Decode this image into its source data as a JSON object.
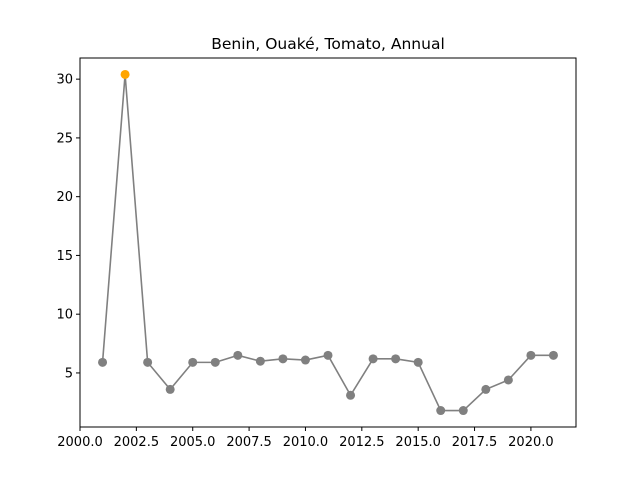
{
  "chart_data": {
    "type": "line",
    "title": "Benin, Ouaké, Tomato, Annual",
    "xlabel": "",
    "ylabel": "",
    "x": [
      2001,
      2002,
      2003,
      2004,
      2005,
      2006,
      2007,
      2008,
      2009,
      2010,
      2011,
      2012,
      2013,
      2014,
      2015,
      2016,
      2017,
      2018,
      2019,
      2020,
      2021
    ],
    "series": [
      {
        "values": [
          5.9,
          30.4,
          5.9,
          3.6,
          5.9,
          5.9,
          6.5,
          6.0,
          6.2,
          6.1,
          6.5,
          3.1,
          6.2,
          6.2,
          5.9,
          1.8,
          1.8,
          3.6,
          4.4,
          6.5,
          6.5
        ],
        "color": "#808080"
      }
    ],
    "highlight": {
      "index": 1,
      "color": "#ffa500"
    },
    "xlim": [
      2000.0,
      2022.0
    ],
    "ylim": [
      0.4,
      31.8
    ],
    "xticks": [
      2000.0,
      2002.5,
      2005.0,
      2007.5,
      2010.0,
      2012.5,
      2015.0,
      2017.5,
      2020.0
    ],
    "xtick_labels": [
      "2000.0",
      "2002.5",
      "2005.0",
      "2007.5",
      "2010.0",
      "2012.5",
      "2015.0",
      "2017.5",
      "2020.0"
    ],
    "yticks": [
      5,
      10,
      15,
      20,
      25,
      30
    ],
    "ytick_labels": [
      "5",
      "10",
      "15",
      "20",
      "25",
      "30"
    ],
    "grid": false,
    "legend": "none"
  }
}
